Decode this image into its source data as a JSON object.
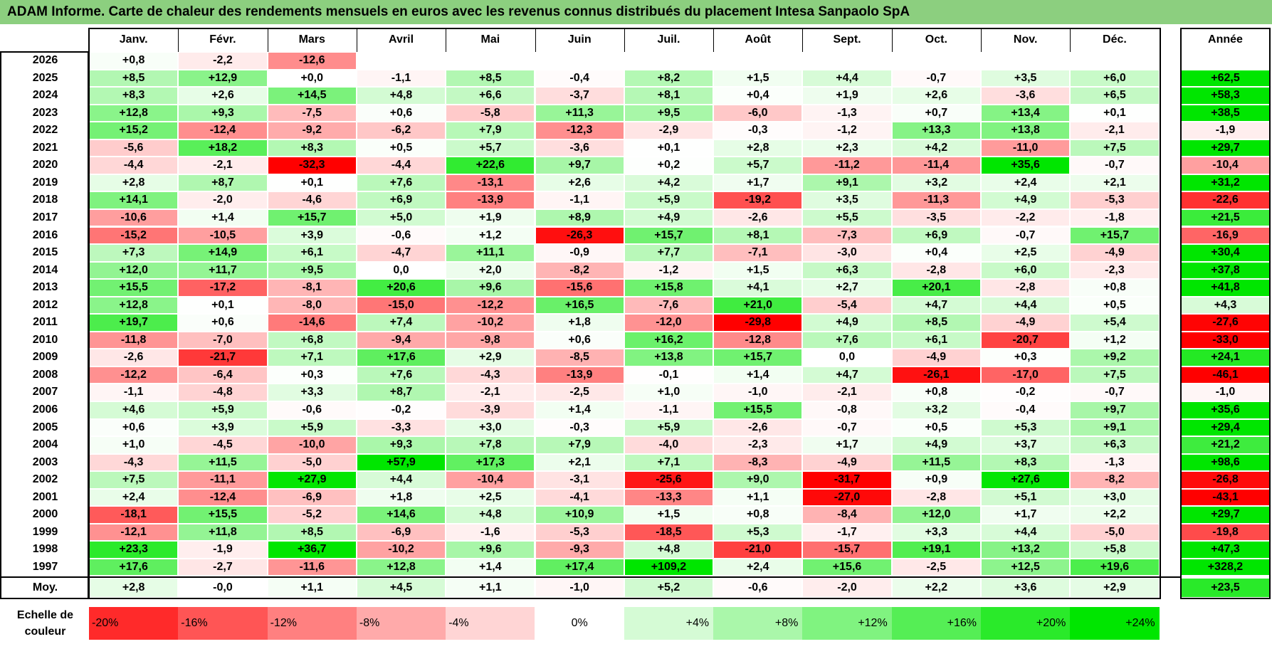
{
  "title": "ADAM Informe. Carte de chaleur des rendements mensuels en euros avec les revenus connus distribués du placement Intesa Sanpaolo SpA",
  "chart_data": {
    "type": "heatmap",
    "months": [
      "Janv.",
      "Févr.",
      "Mars",
      "Avril",
      "Mai",
      "Juin",
      "Juil.",
      "Août",
      "Sept.",
      "Oct.",
      "Nov.",
      "Déc."
    ],
    "year_header": "Année",
    "rows": [
      {
        "year": "2026",
        "values": [
          "+0,8",
          "-2,2",
          "-12,6",
          "",
          "",
          "",
          "",
          "",
          "",
          "",
          "",
          ""
        ],
        "annual": ""
      },
      {
        "year": "2025",
        "values": [
          "+8,5",
          "+12,9",
          "+0,0",
          "-1,1",
          "+8,5",
          "-0,4",
          "+8,2",
          "+1,5",
          "+4,4",
          "-0,7",
          "+3,5",
          "+6,0"
        ],
        "annual": "+62,5"
      },
      {
        "year": "2024",
        "values": [
          "+8,3",
          "+2,6",
          "+14,5",
          "+4,8",
          "+6,6",
          "-3,7",
          "+8,1",
          "+0,4",
          "+1,9",
          "+2,6",
          "-3,6",
          "+6,5"
        ],
        "annual": "+58,3"
      },
      {
        "year": "2023",
        "values": [
          "+12,8",
          "+9,3",
          "-7,5",
          "+0,6",
          "-5,8",
          "+11,3",
          "+9,5",
          "-6,0",
          "-1,3",
          "+0,7",
          "+13,4",
          "+0,1"
        ],
        "annual": "+38,5"
      },
      {
        "year": "2022",
        "values": [
          "+15,2",
          "-12,4",
          "-9,2",
          "-6,2",
          "+7,9",
          "-12,3",
          "-2,9",
          "-0,3",
          "-1,2",
          "+13,3",
          "+13,8",
          "-2,1"
        ],
        "annual": "-1,9"
      },
      {
        "year": "2021",
        "values": [
          "-5,6",
          "+18,2",
          "+8,3",
          "+0,5",
          "+5,7",
          "-3,6",
          "+0,1",
          "+2,8",
          "+2,3",
          "+4,2",
          "-11,0",
          "+7,5"
        ],
        "annual": "+29,7"
      },
      {
        "year": "2020",
        "values": [
          "-4,4",
          "-2,1",
          "-32,3",
          "-4,4",
          "+22,6",
          "+9,7",
          "+0,2",
          "+5,7",
          "-11,2",
          "-11,4",
          "+35,6",
          "-0,7"
        ],
        "annual": "-10,4"
      },
      {
        "year": "2019",
        "values": [
          "+2,8",
          "+8,7",
          "+0,1",
          "+7,6",
          "-13,1",
          "+2,6",
          "+4,2",
          "+1,7",
          "+9,1",
          "+3,2",
          "+2,4",
          "+2,1"
        ],
        "annual": "+31,2"
      },
      {
        "year": "2018",
        "values": [
          "+14,1",
          "-2,0",
          "-4,6",
          "+6,9",
          "-13,9",
          "-1,1",
          "+5,9",
          "-19,2",
          "+3,5",
          "-11,3",
          "+4,9",
          "-5,3"
        ],
        "annual": "-22,6"
      },
      {
        "year": "2017",
        "values": [
          "-10,6",
          "+1,4",
          "+15,7",
          "+5,0",
          "+1,9",
          "+8,9",
          "+4,9",
          "-2,6",
          "+5,5",
          "-3,5",
          "-2,2",
          "-1,8"
        ],
        "annual": "+21,5"
      },
      {
        "year": "2016",
        "values": [
          "-15,2",
          "-10,5",
          "+3,9",
          "-0,6",
          "+1,2",
          "-26,3",
          "+15,7",
          "+8,1",
          "-7,3",
          "+6,9",
          "-0,7",
          "+15,7"
        ],
        "annual": "-16,9"
      },
      {
        "year": "2015",
        "values": [
          "+7,3",
          "+14,9",
          "+6,1",
          "-4,7",
          "+11,1",
          "-0,9",
          "+7,7",
          "-7,1",
          "-3,0",
          "+0,4",
          "+2,5",
          "-4,9"
        ],
        "annual": "+30,4"
      },
      {
        "year": "2014",
        "values": [
          "+12,0",
          "+11,7",
          "+9,5",
          "0,0",
          "+2,0",
          "-8,2",
          "-1,2",
          "+1,5",
          "+6,3",
          "-2,8",
          "+6,0",
          "-2,3"
        ],
        "annual": "+37,8"
      },
      {
        "year": "2013",
        "values": [
          "+15,5",
          "-17,2",
          "-8,1",
          "+20,6",
          "+9,6",
          "-15,6",
          "+15,8",
          "+4,1",
          "+2,7",
          "+20,1",
          "-2,8",
          "+0,8"
        ],
        "annual": "+41,8"
      },
      {
        "year": "2012",
        "values": [
          "+12,8",
          "+0,1",
          "-8,0",
          "-15,0",
          "-12,2",
          "+16,5",
          "-7,6",
          "+21,0",
          "-5,4",
          "+4,7",
          "+4,4",
          "+0,5"
        ],
        "annual": "+4,3"
      },
      {
        "year": "2011",
        "values": [
          "+19,7",
          "+0,6",
          "-14,6",
          "+7,4",
          "-10,2",
          "+1,8",
          "-12,0",
          "-29,8",
          "+4,9",
          "+8,5",
          "-4,9",
          "+5,4"
        ],
        "annual": "-27,6"
      },
      {
        "year": "2010",
        "values": [
          "-11,8",
          "-7,0",
          "+6,8",
          "-9,4",
          "-9,8",
          "+0,6",
          "+16,2",
          "-12,8",
          "+7,6",
          "+6,1",
          "-20,7",
          "+1,2"
        ],
        "annual": "-33,0"
      },
      {
        "year": "2009",
        "values": [
          "-2,6",
          "-21,7",
          "+7,1",
          "+17,6",
          "+2,9",
          "-8,5",
          "+13,8",
          "+15,7",
          "0,0",
          "-4,9",
          "+0,3",
          "+9,2"
        ],
        "annual": "+24,1"
      },
      {
        "year": "2008",
        "values": [
          "-12,2",
          "-6,4",
          "+0,3",
          "+7,6",
          "-4,3",
          "-13,9",
          "-0,1",
          "+1,4",
          "+4,7",
          "-26,1",
          "-17,0",
          "+7,5"
        ],
        "annual": "-46,1"
      },
      {
        "year": "2007",
        "values": [
          "-1,1",
          "-4,8",
          "+3,3",
          "+8,7",
          "-2,1",
          "-2,5",
          "+1,0",
          "-1,0",
          "-2,1",
          "+0,8",
          "-0,2",
          "-0,7"
        ],
        "annual": "-1,0"
      },
      {
        "year": "2006",
        "values": [
          "+4,6",
          "+5,9",
          "-0,6",
          "-0,2",
          "-3,9",
          "+1,4",
          "-1,1",
          "+15,5",
          "-0,8",
          "+3,2",
          "-0,4",
          "+9,7"
        ],
        "annual": "+35,6"
      },
      {
        "year": "2005",
        "values": [
          "+0,6",
          "+3,9",
          "+5,9",
          "-3,3",
          "+3,0",
          "-0,3",
          "+5,9",
          "-2,6",
          "-0,7",
          "+0,5",
          "+5,3",
          "+9,1"
        ],
        "annual": "+29,4"
      },
      {
        "year": "2004",
        "values": [
          "+1,0",
          "-4,5",
          "-10,0",
          "+9,3",
          "+7,8",
          "+7,9",
          "-4,0",
          "-2,3",
          "+1,7",
          "+4,9",
          "+3,7",
          "+6,3"
        ],
        "annual": "+21,2"
      },
      {
        "year": "2003",
        "values": [
          "-4,3",
          "+11,5",
          "-5,0",
          "+57,9",
          "+17,3",
          "+2,1",
          "+7,1",
          "-8,3",
          "-4,9",
          "+11,5",
          "+8,3",
          "-1,3"
        ],
        "annual": "+98,6"
      },
      {
        "year": "2002",
        "values": [
          "+7,5",
          "-11,1",
          "+27,9",
          "+4,4",
          "-10,4",
          "-3,1",
          "-25,6",
          "+9,0",
          "-31,7",
          "+0,9",
          "+27,6",
          "-8,2"
        ],
        "annual": "-26,8"
      },
      {
        "year": "2001",
        "values": [
          "+2,4",
          "-12,4",
          "-6,9",
          "+1,8",
          "+2,5",
          "-4,1",
          "-13,3",
          "+1,1",
          "-27,0",
          "-2,8",
          "+5,1",
          "+3,0"
        ],
        "annual": "-43,1"
      },
      {
        "year": "2000",
        "values": [
          "-18,1",
          "+15,5",
          "-5,2",
          "+14,6",
          "+4,8",
          "+10,9",
          "+1,5",
          "+0,8",
          "-8,4",
          "+12,0",
          "+1,7",
          "+2,2"
        ],
        "annual": "+29,7"
      },
      {
        "year": "1999",
        "values": [
          "-12,1",
          "+11,8",
          "+8,5",
          "-6,9",
          "-1,6",
          "-5,3",
          "-18,5",
          "+5,3",
          "-1,7",
          "+3,3",
          "+4,4",
          "-5,0"
        ],
        "annual": "-19,8"
      },
      {
        "year": "1998",
        "values": [
          "+23,3",
          "-1,9",
          "+36,7",
          "-10,2",
          "+9,6",
          "-9,3",
          "+4,8",
          "-21,0",
          "-15,7",
          "+19,1",
          "+13,2",
          "+5,8"
        ],
        "annual": "+47,3"
      },
      {
        "year": "1997",
        "values": [
          "+17,6",
          "-2,7",
          "-11,6",
          "+12,8",
          "+1,4",
          "+17,4",
          "+109,2",
          "+2,4",
          "+15,6",
          "-2,5",
          "+12,5",
          "+19,6"
        ],
        "annual": "+328,2"
      }
    ],
    "average": {
      "label": "Moy.",
      "values": [
        "+2,8",
        "-0,0",
        "+1,1",
        "+4,5",
        "+1,1",
        "-1,0",
        "+5,2",
        "-0,6",
        "-2,0",
        "+2,2",
        "+3,6",
        "+2,9"
      ],
      "annual": "+23,5"
    },
    "scale_label": [
      "Echelle de",
      "couleur"
    ],
    "scale": [
      "-20%",
      "-16%",
      "-12%",
      "-8%",
      "-4%",
      "0%",
      "+4%",
      "+8%",
      "+12%",
      "+16%",
      "+20%",
      "+24%"
    ],
    "colors": {
      "title_bg": "#8ccf7f",
      "neg": "#ff0000",
      "pos": "#00e600",
      "zero": "#ffffff",
      "text": "#000000"
    }
  }
}
